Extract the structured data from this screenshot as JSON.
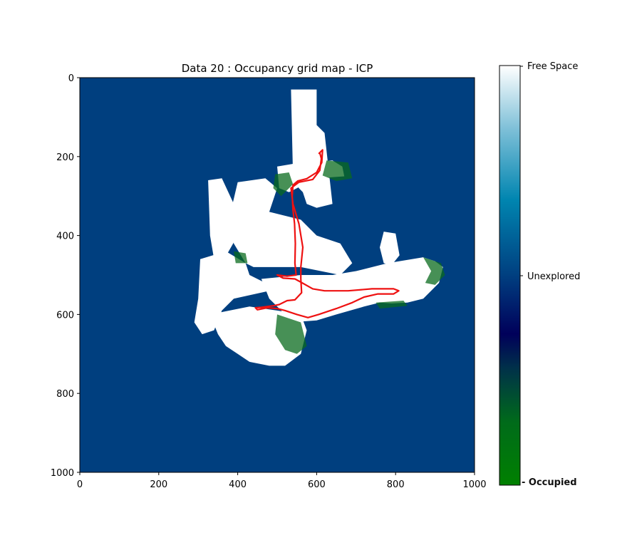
{
  "chart_data": {
    "type": "heatmap",
    "title": "Data 20 : Occupancy grid map - ICP",
    "xlabel": "",
    "ylabel": "",
    "xlim": [
      0,
      1000
    ],
    "ylim": [
      1000,
      0
    ],
    "x_ticks": [
      "0",
      "200",
      "400",
      "600",
      "800",
      "1000"
    ],
    "y_ticks": [
      "0",
      "200",
      "400",
      "600",
      "800",
      "1000"
    ],
    "x_tick_values": [
      0,
      200,
      400,
      600,
      800,
      1000
    ],
    "y_tick_values": [
      0,
      200,
      400,
      600,
      800,
      1000
    ],
    "colorbar": {
      "labels": [
        "Free Space",
        "Unexplored",
        "- Occupied"
      ],
      "colors": [
        "#ffffff",
        "#0e8cb0",
        "#003f80",
        "#00004f",
        "#003a26",
        "#008000"
      ]
    },
    "background_color": "#003f7f",
    "free_color": "#ffffff",
    "occupied_color": "#0a6b1e",
    "trajectory_color": "#ee1111",
    "trajectory": [
      [
        605,
        193
      ],
      [
        615,
        183
      ],
      [
        613,
        215
      ],
      [
        600,
        240
      ],
      [
        575,
        256
      ],
      [
        552,
        262
      ],
      [
        540,
        272
      ],
      [
        538,
        300
      ],
      [
        540,
        335
      ],
      [
        544,
        370
      ],
      [
        546,
        420
      ],
      [
        545,
        470
      ],
      [
        548,
        500
      ],
      [
        525,
        503
      ],
      [
        500,
        500
      ],
      [
        515,
        508
      ],
      [
        545,
        510
      ],
      [
        560,
        518
      ],
      [
        590,
        535
      ],
      [
        620,
        540
      ],
      [
        680,
        540
      ],
      [
        740,
        535
      ],
      [
        795,
        535
      ],
      [
        808,
        540
      ],
      [
        795,
        548
      ],
      [
        755,
        548
      ],
      [
        720,
        556
      ],
      [
        690,
        570
      ],
      [
        650,
        585
      ],
      [
        605,
        600
      ],
      [
        578,
        608
      ],
      [
        550,
        600
      ],
      [
        520,
        590
      ],
      [
        500,
        585
      ],
      [
        475,
        583
      ],
      [
        450,
        588
      ],
      [
        445,
        583
      ],
      [
        460,
        582
      ],
      [
        490,
        578
      ],
      [
        505,
        575
      ],
      [
        525,
        565
      ],
      [
        545,
        563
      ],
      [
        562,
        545
      ],
      [
        560,
        510
      ],
      [
        560,
        480
      ],
      [
        565,
        430
      ],
      [
        555,
        370
      ],
      [
        540,
        320
      ],
      [
        535,
        280
      ],
      [
        555,
        265
      ],
      [
        590,
        258
      ],
      [
        608,
        235
      ],
      [
        612,
        205
      ],
      [
        608,
        190
      ]
    ],
    "free_regions": [
      [
        [
          535,
          30
        ],
        [
          600,
          30
        ],
        [
          600,
          120
        ],
        [
          620,
          140
        ],
        [
          640,
          320
        ],
        [
          600,
          330
        ],
        [
          575,
          320
        ],
        [
          565,
          290
        ],
        [
          555,
          280
        ],
        [
          540,
          250
        ]
      ],
      [
        [
          560,
          215
        ],
        [
          640,
          210
        ],
        [
          665,
          225
        ],
        [
          670,
          250
        ],
        [
          600,
          255
        ],
        [
          560,
          275
        ],
        [
          530,
          290
        ],
        [
          505,
          280
        ],
        [
          500,
          225
        ]
      ],
      [
        [
          400,
          265
        ],
        [
          470,
          255
        ],
        [
          500,
          280
        ],
        [
          480,
          340
        ],
        [
          560,
          360
        ],
        [
          600,
          400
        ],
        [
          660,
          420
        ],
        [
          690,
          470
        ],
        [
          660,
          500
        ],
        [
          560,
          480
        ],
        [
          440,
          480
        ],
        [
          420,
          470
        ],
        [
          390,
          420
        ],
        [
          380,
          350
        ]
      ],
      [
        [
          325,
          260
        ],
        [
          360,
          255
        ],
        [
          390,
          320
        ],
        [
          400,
          400
        ],
        [
          360,
          470
        ],
        [
          340,
          460
        ],
        [
          330,
          400
        ]
      ],
      [
        [
          305,
          460
        ],
        [
          370,
          440
        ],
        [
          420,
          470
        ],
        [
          430,
          500
        ],
        [
          470,
          520
        ],
        [
          520,
          530
        ],
        [
          480,
          540
        ],
        [
          390,
          560
        ],
        [
          360,
          590
        ],
        [
          340,
          640
        ],
        [
          310,
          650
        ],
        [
          290,
          620
        ],
        [
          300,
          560
        ]
      ],
      [
        [
          330,
          600
        ],
        [
          430,
          580
        ],
        [
          500,
          590
        ],
        [
          560,
          600
        ],
        [
          575,
          640
        ],
        [
          560,
          700
        ],
        [
          520,
          730
        ],
        [
          480,
          730
        ],
        [
          430,
          720
        ],
        [
          400,
          700
        ],
        [
          370,
          680
        ],
        [
          350,
          650
        ]
      ],
      [
        [
          460,
          510
        ],
        [
          560,
          500
        ],
        [
          640,
          500
        ],
        [
          700,
          490
        ],
        [
          780,
          470
        ],
        [
          870,
          455
        ],
        [
          900,
          465
        ],
        [
          920,
          480
        ],
        [
          910,
          520
        ],
        [
          870,
          560
        ],
        [
          830,
          570
        ],
        [
          790,
          572
        ],
        [
          760,
          570
        ],
        [
          720,
          580
        ],
        [
          650,
          600
        ],
        [
          600,
          615
        ],
        [
          560,
          618
        ],
        [
          520,
          600
        ],
        [
          480,
          560
        ]
      ],
      [
        [
          770,
          390
        ],
        [
          800,
          395
        ],
        [
          810,
          450
        ],
        [
          790,
          475
        ],
        [
          770,
          470
        ],
        [
          760,
          430
        ]
      ]
    ],
    "occupied_regions": [
      [
        [
          495,
          245
        ],
        [
          530,
          240
        ],
        [
          540,
          270
        ],
        [
          510,
          300
        ],
        [
          490,
          280
        ]
      ],
      [
        [
          625,
          210
        ],
        [
          680,
          215
        ],
        [
          690,
          255
        ],
        [
          650,
          262
        ],
        [
          615,
          248
        ]
      ],
      [
        [
          500,
          600
        ],
        [
          560,
          620
        ],
        [
          575,
          680
        ],
        [
          550,
          700
        ],
        [
          520,
          690
        ],
        [
          495,
          650
        ]
      ],
      [
        [
          870,
          455
        ],
        [
          915,
          470
        ],
        [
          925,
          500
        ],
        [
          900,
          525
        ],
        [
          875,
          520
        ],
        [
          890,
          490
        ]
      ],
      [
        [
          750,
          570
        ],
        [
          820,
          565
        ],
        [
          830,
          578
        ],
        [
          760,
          585
        ]
      ],
      [
        [
          390,
          440
        ],
        [
          420,
          445
        ],
        [
          425,
          470
        ],
        [
          395,
          470
        ]
      ]
    ]
  }
}
